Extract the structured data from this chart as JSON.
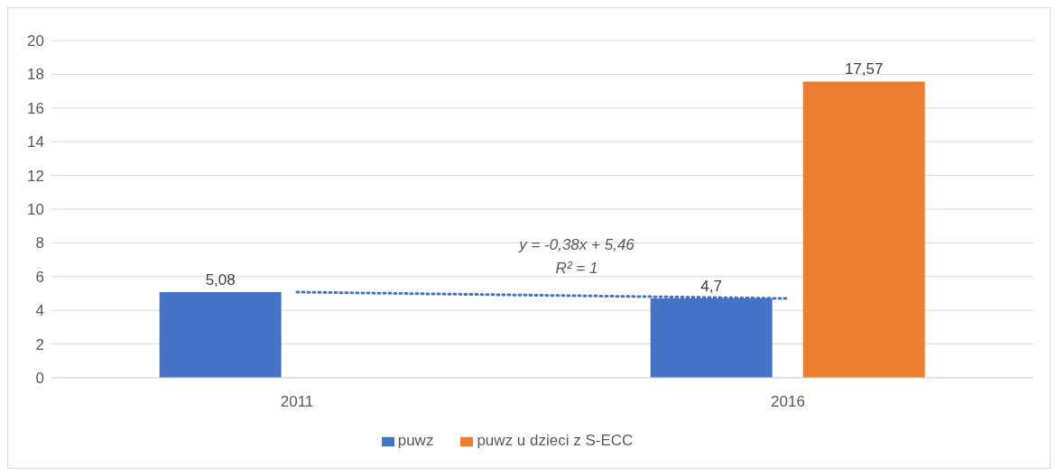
{
  "chart_data": {
    "type": "bar",
    "categories": [
      "2011",
      "2016"
    ],
    "series": [
      {
        "name": "puwz",
        "color": "#4472c4",
        "values": [
          5.08,
          4.7
        ],
        "value_labels": [
          "5,08",
          "4,7"
        ]
      },
      {
        "name": "puwz u dzieci z S-ECC",
        "color": "#ed7d31",
        "values": [
          null,
          17.57
        ],
        "value_labels": [
          null,
          "17,57"
        ]
      },
      {
        "type": "line",
        "values": [
          5.08,
          4.7
        ],
        "color": "#4472c4",
        "line_style": "dotted",
        "marker": "none"
      }
    ],
    "annotations": [
      "y = -0,38x + 5,46",
      "R² = 1"
    ],
    "ylim": [
      0,
      20
    ],
    "yticks": [
      0,
      2,
      4,
      6,
      8,
      10,
      12,
      14,
      16,
      18,
      20
    ],
    "grid": "y",
    "legend": "bottom"
  }
}
